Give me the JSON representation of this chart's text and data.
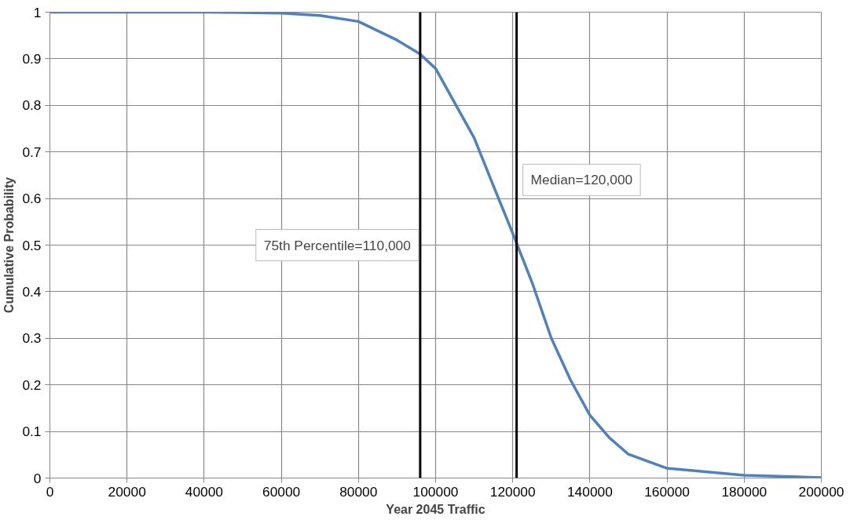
{
  "chart_data": {
    "type": "line",
    "xlabel": "Year 2045 Traffic",
    "ylabel": "Cumulative Probability",
    "x": [
      0,
      20000,
      40000,
      50000,
      60000,
      70000,
      80000,
      90000,
      96000,
      100000,
      110000,
      115000,
      120000,
      125000,
      130000,
      135000,
      140000,
      145000,
      150000,
      160000,
      180000,
      200000
    ],
    "series": [
      {
        "color": "#4f81bd",
        "values": [
          1.0,
          1.0,
          1.0,
          0.999,
          0.998,
          0.993,
          0.98,
          0.94,
          0.91,
          0.879,
          0.73,
          0.627,
          0.525,
          0.42,
          0.3,
          0.21,
          0.135,
          0.087,
          0.051,
          0.021,
          0.006,
          0.001
        ]
      }
    ],
    "xlim": [
      0,
      200000
    ],
    "xticks": [
      0,
      20000,
      40000,
      60000,
      80000,
      100000,
      120000,
      140000,
      160000,
      180000,
      200000
    ],
    "ylim": [
      0,
      1
    ],
    "yticks": [
      0,
      0.1,
      0.2,
      0.3,
      0.4,
      0.5,
      0.6,
      0.7,
      0.8,
      0.9,
      1
    ],
    "ref_lines": [
      {
        "axis": "x",
        "value": 96000,
        "color": "#000000"
      },
      {
        "axis": "x",
        "value": 121000,
        "color": "#000000"
      }
    ],
    "annotations": [
      "75th Percentile=110,000",
      "Median=120,000"
    ],
    "grid": true,
    "marker": "none",
    "line_style": "solid"
  }
}
